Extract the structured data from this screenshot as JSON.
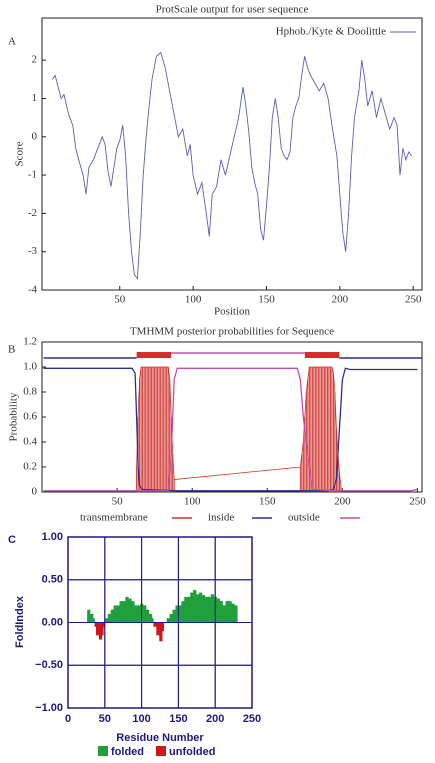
{
  "chart_data": [
    {
      "type": "line",
      "panel": "A",
      "title": "ProtScale output for user sequence",
      "xlabel": "Position",
      "ylabel": "Score",
      "xlim": [
        -3,
        256
      ],
      "ylim": [
        -4,
        3.1
      ],
      "xticks": [
        50,
        100,
        150,
        200,
        250
      ],
      "yticks": [
        -4,
        -3,
        -2,
        -1,
        0,
        1,
        2
      ],
      "legend": "upper right",
      "series": [
        {
          "name": "Hphob./Kyte & Doolittle",
          "color": "#5a5fb0",
          "x": [
            4,
            6,
            10,
            12,
            15,
            18,
            20,
            22,
            25,
            27,
            29,
            32,
            35,
            38,
            40,
            42,
            44,
            46,
            48,
            50,
            52,
            54,
            56,
            58,
            60,
            62,
            64,
            66,
            68,
            70,
            72,
            75,
            78,
            81,
            84,
            87,
            90,
            93,
            96,
            98,
            100,
            103,
            106,
            109,
            111,
            113,
            116,
            119,
            122,
            125,
            128,
            131,
            134,
            136,
            138,
            140,
            142,
            144,
            146,
            148,
            150,
            152,
            154,
            156,
            158,
            160,
            162,
            164,
            166,
            168,
            170,
            172,
            174,
            176,
            178,
            180,
            183,
            186,
            189,
            192,
            195,
            198,
            200,
            202,
            204,
            206,
            208,
            210,
            213,
            215,
            217,
            219,
            222,
            225,
            228,
            231,
            234,
            237,
            239,
            241,
            243,
            245,
            247,
            249
          ],
          "values": [
            1.5,
            1.6,
            1.0,
            1.1,
            0.6,
            0.3,
            -0.3,
            -0.6,
            -1.0,
            -1.5,
            -0.8,
            -0.6,
            -0.3,
            0.0,
            -0.2,
            -0.9,
            -1.3,
            -0.8,
            -0.3,
            -0.1,
            0.3,
            -0.5,
            -2.0,
            -3.0,
            -3.6,
            -3.7,
            -2.5,
            -1.0,
            0.0,
            0.8,
            1.5,
            2.1,
            2.2,
            1.8,
            1.2,
            0.6,
            0.0,
            0.2,
            -0.5,
            -0.2,
            -1.0,
            -1.5,
            -1.2,
            -2.0,
            -2.6,
            -1.5,
            -1.3,
            -0.6,
            -1.0,
            -0.5,
            0.0,
            0.5,
            1.3,
            0.8,
            0.1,
            -0.8,
            -1.2,
            -1.5,
            -2.4,
            -2.7,
            -1.8,
            -0.8,
            0.5,
            1.0,
            0.5,
            -0.3,
            -0.5,
            -0.6,
            -0.4,
            0.5,
            0.8,
            1.0,
            1.6,
            2.1,
            1.8,
            1.6,
            1.4,
            1.2,
            1.4,
            1.0,
            0.2,
            -0.5,
            -1.5,
            -2.5,
            -3.0,
            -2.0,
            -0.5,
            0.5,
            1.2,
            2.0,
            1.5,
            0.8,
            1.2,
            0.5,
            1.0,
            0.6,
            0.2,
            0.5,
            0.3,
            -1.0,
            -0.3,
            -0.6,
            -0.4,
            -0.5
          ]
        }
      ]
    },
    {
      "type": "line",
      "panel": "B",
      "title": "TMHMM posterior probabilities for Sequence",
      "ylabel": "Probability",
      "xlim": [
        0,
        253
      ],
      "ylim": [
        0,
        1.2
      ],
      "xticks": [
        50,
        100,
        150,
        200,
        250
      ],
      "yticks": [
        0,
        0.2,
        0.4,
        0.6,
        0.8,
        {
          "value": 1,
          "label": "1.0"
        },
        1.2
      ],
      "series": [
        {
          "name": "transmembrane",
          "color": "#d0302a",
          "style": "stems",
          "x": [
            63,
            64,
            65,
            66,
            67,
            68,
            69,
            70,
            71,
            72,
            73,
            74,
            75,
            76,
            77,
            78,
            79,
            80,
            81,
            82,
            83,
            84,
            85,
            86,
            87,
            88,
            172,
            173,
            174,
            175,
            176,
            177,
            178,
            179,
            180,
            181,
            182,
            183,
            184,
            185,
            186,
            187,
            188,
            189,
            190,
            191,
            192,
            193,
            194,
            195,
            196,
            197,
            198,
            199
          ],
          "values": [
            0.2,
            0.6,
            0.9,
            1,
            1,
            1,
            1,
            1,
            1,
            1,
            1,
            1,
            1,
            1,
            1,
            1,
            1,
            1,
            1,
            1,
            1,
            1,
            0.9,
            0.6,
            0.3,
            0.1,
            0.2,
            0.3,
            0.4,
            0.6,
            0.8,
            0.9,
            1,
            1,
            1,
            1,
            1,
            1,
            1,
            1,
            1,
            1,
            1,
            1,
            1,
            1,
            1,
            1,
            0.95,
            0.8,
            0.5,
            0.3,
            0.15,
            0.05
          ]
        },
        {
          "name": "inside",
          "color": "#2a2f90",
          "x": [
            1,
            60,
            62,
            63,
            64,
            65,
            67,
            90,
            190,
            194,
            196,
            198,
            200,
            202,
            205,
            250
          ],
          "values": [
            0.99,
            0.99,
            0.95,
            0.6,
            0.2,
            0.05,
            0.02,
            0.01,
            0.01,
            0.02,
            0.1,
            0.5,
            0.9,
            0.99,
            0.98,
            0.98
          ]
        },
        {
          "name": "outside",
          "color": "#c050b0",
          "x": [
            1,
            84,
            86,
            88,
            90,
            170,
            172,
            174,
            176,
            178,
            180,
            200,
            245,
            250
          ],
          "values": [
            0.01,
            0.01,
            0.3,
            0.9,
            0.99,
            0.99,
            0.9,
            0.6,
            0.4,
            0.2,
            0.02,
            0.01,
            0.01,
            0.02
          ]
        }
      ],
      "topology": [
        {
          "series": 1,
          "start": 1,
          "end": 63
        },
        {
          "series": 0,
          "start": 63,
          "end": 86
        },
        {
          "series": 2,
          "start": 86,
          "end": 175
        },
        {
          "series": 0,
          "start": 175,
          "end": 198
        },
        {
          "series": 1,
          "start": 198,
          "end": 253
        }
      ]
    },
    {
      "type": "bar",
      "panel": "C",
      "xlabel": "Residue Number",
      "ylabel": "FoldIndex",
      "grid": true,
      "xlim": [
        0,
        250
      ],
      "ylim": [
        -1,
        1
      ],
      "xticks": [
        0,
        50,
        100,
        150,
        200,
        250
      ],
      "yticks": [
        {
          "value": 1,
          "label": "1.00"
        },
        {
          "value": 0.5,
          "label": "0.50"
        },
        {
          "value": 0,
          "label": "0.00"
        },
        {
          "value": -0.5,
          "label": "−0.50"
        },
        {
          "value": -1,
          "label": "−1.00"
        }
      ],
      "x": [
        26,
        30,
        34,
        36,
        38,
        42,
        46,
        48,
        50,
        54,
        58,
        62,
        66,
        70,
        74,
        78,
        82,
        86,
        90,
        94,
        98,
        102,
        106,
        110,
        114,
        116,
        120,
        124,
        128,
        130,
        134,
        138,
        142,
        146,
        150,
        154,
        158,
        162,
        166,
        170,
        174,
        178,
        182,
        186,
        190,
        194,
        198,
        202,
        206,
        210,
        214,
        218,
        222,
        226
      ],
      "series": [
        {
          "name": "folded",
          "color": "#1fa03a",
          "values": [
            0.15,
            0.1,
            0.05,
            null,
            null,
            null,
            null,
            null,
            0.05,
            0.1,
            0.15,
            0.2,
            0.2,
            0.25,
            0.25,
            0.3,
            0.28,
            0.25,
            0.2,
            0.2,
            0.22,
            0.2,
            0.15,
            0.1,
            0.05,
            null,
            null,
            null,
            null,
            0,
            0.05,
            0.1,
            0.15,
            0.2,
            0.2,
            0.25,
            0.3,
            0.3,
            0.35,
            0.38,
            0.33,
            0.35,
            0.32,
            0.3,
            0.3,
            0.33,
            0.3,
            0.28,
            0.25,
            0.2,
            0.25,
            0.25,
            0.22,
            0.2
          ]
        },
        {
          "name": "unfolded",
          "color": "#d0161b",
          "values": [
            null,
            null,
            null,
            -0.05,
            -0.15,
            -0.2,
            -0.15,
            -0.05,
            null,
            null,
            null,
            null,
            null,
            null,
            null,
            null,
            null,
            null,
            null,
            null,
            null,
            null,
            null,
            null,
            null,
            -0.05,
            -0.15,
            -0.22,
            -0.1,
            null,
            null,
            null,
            null,
            null,
            null,
            null,
            null,
            null,
            null,
            null,
            null,
            null,
            null,
            null,
            null,
            null,
            null,
            null,
            null,
            null,
            null,
            null,
            null,
            null
          ]
        }
      ]
    }
  ]
}
